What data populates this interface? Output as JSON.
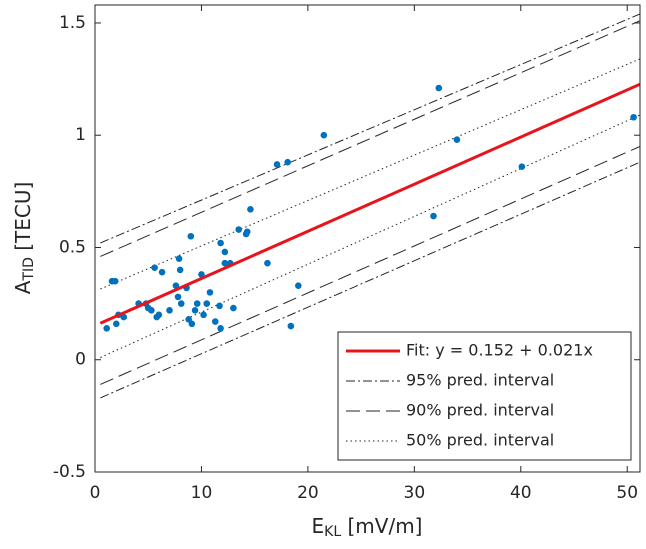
{
  "chart_data": {
    "type": "scatter",
    "xlabel": {
      "main": "E",
      "sub": "KL",
      "unit": " [mV/m]"
    },
    "ylabel": {
      "main": "A",
      "sub": "TID",
      "unit": " [TECU]"
    },
    "xlim": [
      0,
      51.2
    ],
    "ylim": [
      -0.5,
      1.58
    ],
    "xticks": [
      0,
      10,
      20,
      30,
      40,
      50
    ],
    "yticks": [
      -0.5,
      0,
      0.5,
      1,
      1.5
    ],
    "legend": "lower right",
    "points": {
      "color": "#0072bd",
      "x": [
        1.1,
        1.6,
        1.9,
        2.0,
        2.2,
        2.7,
        4.1,
        4.8,
        5.0,
        5.3,
        5.6,
        5.8,
        6.0,
        6.3,
        7.0,
        7.6,
        7.8,
        7.9,
        8.0,
        8.1,
        8.6,
        8.8,
        9.0,
        9.1,
        9.4,
        9.6,
        10.0,
        10.2,
        10.5,
        10.8,
        11.3,
        11.7,
        11.8,
        11.8,
        12.2,
        12.2,
        12.7,
        13.0,
        13.5,
        14.2,
        14.3,
        14.6,
        16.2,
        17.1,
        18.1,
        18.4,
        19.1,
        21.5,
        31.8,
        32.3,
        34.0,
        40.1,
        50.6
      ],
      "y": [
        0.14,
        0.35,
        0.35,
        0.16,
        0.2,
        0.19,
        0.25,
        0.25,
        0.23,
        0.22,
        0.41,
        0.19,
        0.2,
        0.39,
        0.22,
        0.33,
        0.28,
        0.45,
        0.4,
        0.25,
        0.32,
        0.18,
        0.55,
        0.16,
        0.22,
        0.25,
        0.38,
        0.2,
        0.25,
        0.3,
        0.17,
        0.24,
        0.52,
        0.14,
        0.48,
        0.43,
        0.43,
        0.23,
        0.58,
        0.56,
        0.57,
        0.67,
        0.43,
        0.87,
        0.88,
        0.15,
        0.33,
        1.0,
        0.64,
        1.21,
        0.98,
        0.86,
        1.08
      ]
    },
    "series": [
      {
        "name": "Fit: y = 0.152 + 0.021x",
        "color": "#e8141b",
        "style": "solid",
        "x": [
          0.5,
          51.2
        ],
        "y": [
          0.1625,
          1.227
        ]
      },
      {
        "name": "95% pred. interval",
        "color": "#262626",
        "style": "dashdot",
        "x": [
          0.5,
          51.2
        ],
        "y": [
          0.52,
          1.54
        ]
      },
      {
        "name": "95% pred. interval",
        "color": "#262626",
        "style": "dashdot",
        "x": [
          0.5,
          51.2
        ],
        "y": [
          -0.17,
          0.88
        ],
        "legend": false
      },
      {
        "name": "90% pred. interval",
        "color": "#262626",
        "style": "dashed",
        "x": [
          0.5,
          51.2
        ],
        "y": [
          0.46,
          1.51
        ]
      },
      {
        "name": "90% pred. interval",
        "color": "#262626",
        "style": "dashed",
        "x": [
          0.5,
          51.2
        ],
        "y": [
          -0.11,
          0.95
        ],
        "legend": false
      },
      {
        "name": "50% pred. interval",
        "color": "#262626",
        "style": "dotted",
        "x": [
          0.5,
          51.2
        ],
        "y": [
          0.315,
          1.34
        ]
      },
      {
        "name": "50% pred. interval",
        "color": "#262626",
        "style": "dotted",
        "x": [
          0.5,
          51.2
        ],
        "y": [
          0.01,
          1.09
        ],
        "legend": false
      }
    ]
  }
}
